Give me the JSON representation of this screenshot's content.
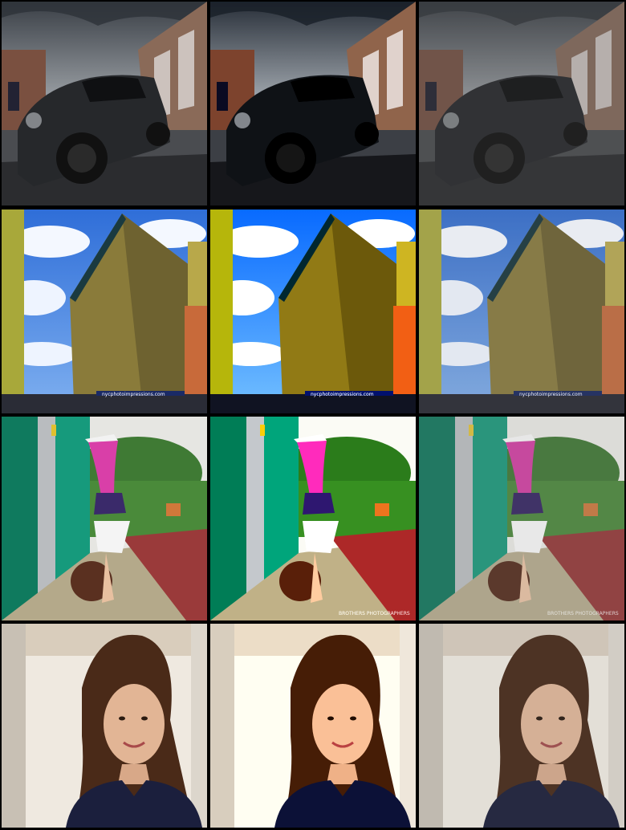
{
  "grid": {
    "rows": 4,
    "columns": 3,
    "watermarks": {
      "building": "nycphotoimpressions.com",
      "handstand": "BROTHERS PHOTOGRAPHERS"
    }
  },
  "rows": [
    {
      "subject": "car",
      "variants": [
        "original",
        "enhanced",
        "muted"
      ]
    },
    {
      "subject": "building",
      "variants": [
        "original",
        "enhanced",
        "muted"
      ]
    },
    {
      "subject": "handstand",
      "variants": [
        "original",
        "enhanced",
        "muted"
      ]
    },
    {
      "subject": "portrait",
      "variants": [
        "original",
        "enhanced",
        "muted"
      ]
    }
  ],
  "colors": {
    "sky_blue": "#2f6ed8",
    "building_olive": "#8a7b3a",
    "fence_teal": "#169a7c",
    "track_red": "#9a3a3a",
    "leggings_pink": "#d93fa8",
    "hair_brown": "#4a2a18",
    "top_navy": "#1b1f3d"
  }
}
